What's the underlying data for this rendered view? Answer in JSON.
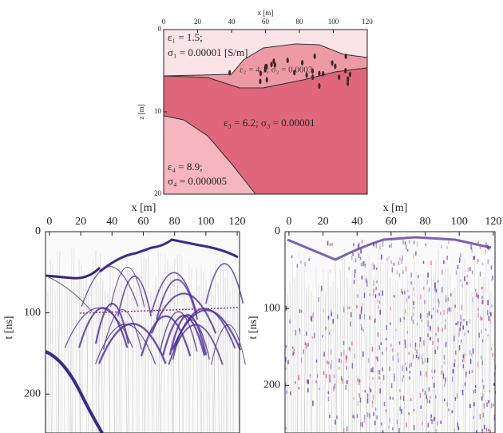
{
  "model": {
    "x_label": "x [m]",
    "z_label": "z [m]",
    "xlim": [
      0,
      120
    ],
    "xticks": [
      0,
      20,
      40,
      60,
      80,
      100,
      120
    ],
    "zlim": [
      0,
      20
    ],
    "zticks": [
      0,
      10,
      20
    ],
    "layers": [
      {
        "line1": "ε₁ = 1.5;",
        "line2": "σ₁ = 0.00001 [S/m]"
      },
      {
        "line1": "ε₂ = 4.1; σ₂ = 0.0003"
      },
      {
        "line1": "ε₃ = 6.2; σ₃ = 0.00001"
      },
      {
        "line1": "ε₄ = 8.9;",
        "line2": "σ₄ = 0.000005"
      }
    ]
  },
  "radargrams": [
    {
      "x_label": "x [m]",
      "t_label": "t [ns]",
      "xlim": [
        -2.5,
        121.5
      ],
      "xticks": [
        0,
        20,
        40,
        60,
        80,
        100,
        120
      ],
      "tlim": [
        0,
        248
      ],
      "tticks": [
        0,
        100,
        200
      ]
    },
    {
      "x_label": "x [m]",
      "t_label": "t [ns]",
      "xlim": [
        -2.3,
        121
      ],
      "xticks": [
        0,
        20,
        40,
        60,
        80,
        100,
        120
      ],
      "tlim": [
        0,
        262
      ],
      "tticks": [
        0,
        100,
        200
      ]
    }
  ]
}
